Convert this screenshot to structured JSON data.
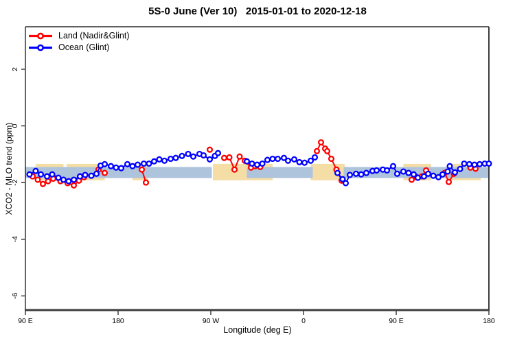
{
  "title": "5S-0 June (Ver 10)   2015-01-01 to 2020-12-18",
  "xlabel": "Longitude (deg E)",
  "ylabel": "XCO2 - MLO trend (ppm)",
  "chart_data": {
    "type": "line",
    "title": "5S-0 June (Ver 10)   2015-01-01 to 2020-12-18",
    "xlabel": "Longitude (deg E)",
    "ylabel": "XCO2 - MLO trend (ppm)",
    "xlim": [
      90,
      540
    ],
    "ylim": [
      -6.5,
      3.5
    ],
    "grid": false,
    "legend_position": "top-left",
    "x_ticks": [
      {
        "pos": 90,
        "label": "90 E"
      },
      {
        "pos": 180,
        "label": "180"
      },
      {
        "pos": 270,
        "label": "90 W"
      },
      {
        "pos": 360,
        "label": "0"
      },
      {
        "pos": 450,
        "label": "90 E"
      },
      {
        "pos": 540,
        "label": "180"
      }
    ],
    "y_ticks": [
      {
        "pos": 2,
        "label": "2"
      },
      {
        "pos": 0,
        "label": "0"
      },
      {
        "pos": -2,
        "label": "-2"
      },
      {
        "pos": -4,
        "label": "-4"
      },
      {
        "pos": -6,
        "label": "-6"
      }
    ],
    "bands": {
      "wheat": {
        "color": "#f5dda6",
        "y_range": [
          -1.92,
          -1.34
        ],
        "x_segments": [
          [
            100,
            127
          ],
          [
            130,
            167
          ],
          [
            194,
            209
          ],
          [
            272,
            330
          ],
          [
            367,
            400
          ],
          [
            457,
            484
          ],
          [
            500,
            532
          ]
        ]
      },
      "blue": {
        "color": "#aec3dc",
        "y_range": [
          -1.84,
          -1.45
        ],
        "x_segments": [
          [
            90,
            271
          ],
          [
            305,
            369
          ],
          [
            399,
            540
          ]
        ]
      }
    },
    "series": {
      "land": {
        "label": "Land (Nadir&Glint)",
        "color": "#ff0000",
        "segments": [
          [
            [
              97,
              -1.78
            ],
            [
              102,
              -1.9
            ],
            [
              107,
              -2.05
            ],
            [
              112,
              -1.95
            ],
            [
              117,
              -1.86
            ],
            [
              124,
              -1.95
            ],
            [
              131,
              -2.02
            ],
            [
              137,
              -2.1
            ],
            [
              142,
              -1.93
            ],
            [
              147,
              -1.81
            ]
          ],
          [
            [
              161,
              -1.54
            ],
            [
              167,
              -1.66
            ]
          ],
          [
            [
              203,
              -1.54
            ],
            [
              207,
              -2.0
            ]
          ],
          [
            [
              269,
              -0.84
            ]
          ],
          [
            [
              283,
              -1.13
            ],
            [
              288,
              -1.11
            ],
            [
              293,
              -1.54
            ],
            [
              298,
              -1.08
            ],
            [
              303,
              -1.23
            ],
            [
              309,
              -1.47
            ],
            [
              313,
              -1.42
            ],
            [
              318,
              -1.45
            ]
          ],
          [
            [
              373,
              -0.89
            ],
            [
              377,
              -0.58
            ],
            [
              381,
              -0.8
            ],
            [
              383,
              -0.89
            ],
            [
              387,
              -1.16
            ],
            [
              392,
              -1.54
            ],
            [
              397,
              -1.93
            ]
          ],
          [
            [
              465,
              -1.9
            ],
            [
              470,
              -1.81
            ]
          ],
          [
            [
              475,
              -1.78
            ],
            [
              479,
              -1.57
            ]
          ],
          [
            [
              497,
              -1.66
            ],
            [
              501,
              -1.98
            ],
            [
              506,
              -1.69
            ]
          ],
          [
            [
              522,
              -1.47
            ],
            [
              527,
              -1.51
            ]
          ]
        ]
      },
      "ocean": {
        "label": "Ocean (Glint)",
        "color": "#0000ff",
        "segments": [
          [
            [
              94,
              -1.71
            ],
            [
              100,
              -1.59
            ],
            [
              105,
              -1.71
            ],
            [
              111,
              -1.78
            ],
            [
              116,
              -1.71
            ],
            [
              122,
              -1.83
            ],
            [
              127,
              -1.9
            ],
            [
              132,
              -1.95
            ],
            [
              137,
              -1.9
            ],
            [
              143,
              -1.78
            ],
            [
              148,
              -1.73
            ],
            [
              154,
              -1.76
            ],
            [
              159,
              -1.69
            ],
            [
              163,
              -1.4
            ],
            [
              167,
              -1.35
            ],
            [
              173,
              -1.42
            ],
            [
              178,
              -1.47
            ],
            [
              183,
              -1.49
            ],
            [
              189,
              -1.35
            ],
            [
              194,
              -1.42
            ],
            [
              199,
              -1.37
            ],
            [
              205,
              -1.33
            ],
            [
              210,
              -1.33
            ],
            [
              215,
              -1.25
            ],
            [
              220,
              -1.18
            ],
            [
              225,
              -1.23
            ],
            [
              231,
              -1.16
            ],
            [
              236,
              -1.13
            ],
            [
              242,
              -1.06
            ],
            [
              248,
              -0.99
            ],
            [
              253,
              -1.08
            ],
            [
              259,
              -0.99
            ],
            [
              263,
              -1.04
            ],
            [
              269,
              -1.18
            ],
            [
              274,
              -1.06
            ],
            [
              277,
              -0.96
            ]
          ],
          [
            [
              305,
              -1.25
            ],
            [
              310,
              -1.33
            ],
            [
              315,
              -1.37
            ],
            [
              320,
              -1.33
            ],
            [
              325,
              -1.2
            ],
            [
              330,
              -1.16
            ],
            [
              335,
              -1.16
            ],
            [
              341,
              -1.13
            ],
            [
              345,
              -1.23
            ],
            [
              351,
              -1.18
            ],
            [
              356,
              -1.28
            ],
            [
              361,
              -1.3
            ],
            [
              367,
              -1.23
            ],
            [
              371,
              -1.11
            ]
          ],
          [
            [
              393,
              -1.66
            ],
            [
              398,
              -1.88
            ],
            [
              401,
              -2.02
            ],
            [
              405,
              -1.73
            ],
            [
              411,
              -1.69
            ],
            [
              416,
              -1.71
            ],
            [
              421,
              -1.66
            ],
            [
              427,
              -1.59
            ],
            [
              431,
              -1.57
            ],
            [
              437,
              -1.54
            ],
            [
              441,
              -1.57
            ],
            [
              447,
              -1.42
            ],
            [
              451,
              -1.69
            ],
            [
              457,
              -1.61
            ],
            [
              462,
              -1.66
            ],
            [
              467,
              -1.71
            ],
            [
              471,
              -1.83
            ],
            [
              477,
              -1.78
            ],
            [
              481,
              -1.69
            ],
            [
              486,
              -1.76
            ],
            [
              491,
              -1.81
            ],
            [
              495,
              -1.71
            ],
            [
              500,
              -1.61
            ],
            [
              502,
              -1.42
            ],
            [
              507,
              -1.64
            ],
            [
              512,
              -1.52
            ],
            [
              516,
              -1.33
            ],
            [
              521,
              -1.35
            ],
            [
              526,
              -1.37
            ],
            [
              531,
              -1.35
            ],
            [
              536,
              -1.33
            ],
            [
              540,
              -1.33
            ]
          ]
        ]
      }
    }
  }
}
